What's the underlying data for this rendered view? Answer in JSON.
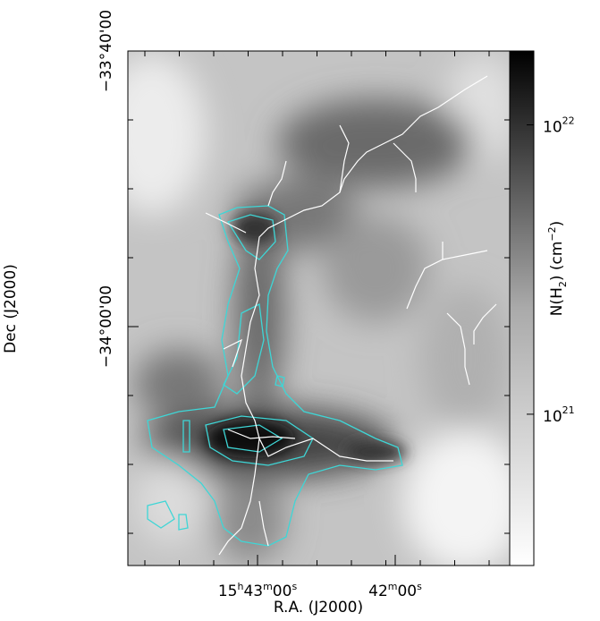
{
  "chart_data": {
    "type": "image",
    "xlabel": "R.A. (J2000)",
    "ylabel": "Dec (J2000)",
    "xticks": [
      [
        "15",
        "h",
        "43",
        "m",
        "00",
        "s"
      ],
      [
        "42",
        "m",
        "00",
        "s"
      ]
    ],
    "yticks": [
      "−33°40'00",
      "−34°00'00"
    ],
    "colorbar": {
      "label": [
        "N(H",
        "2",
        ")  (cm",
        "−2",
        ")"
      ],
      "log": true,
      "clim": [
        3e+20,
        1.8e+22
      ],
      "ticks": [
        {
          "value": 1e+22,
          "base": "10",
          "exp": "22"
        },
        {
          "value": 1e+21,
          "base": "10",
          "exp": "21"
        }
      ]
    }
  }
}
